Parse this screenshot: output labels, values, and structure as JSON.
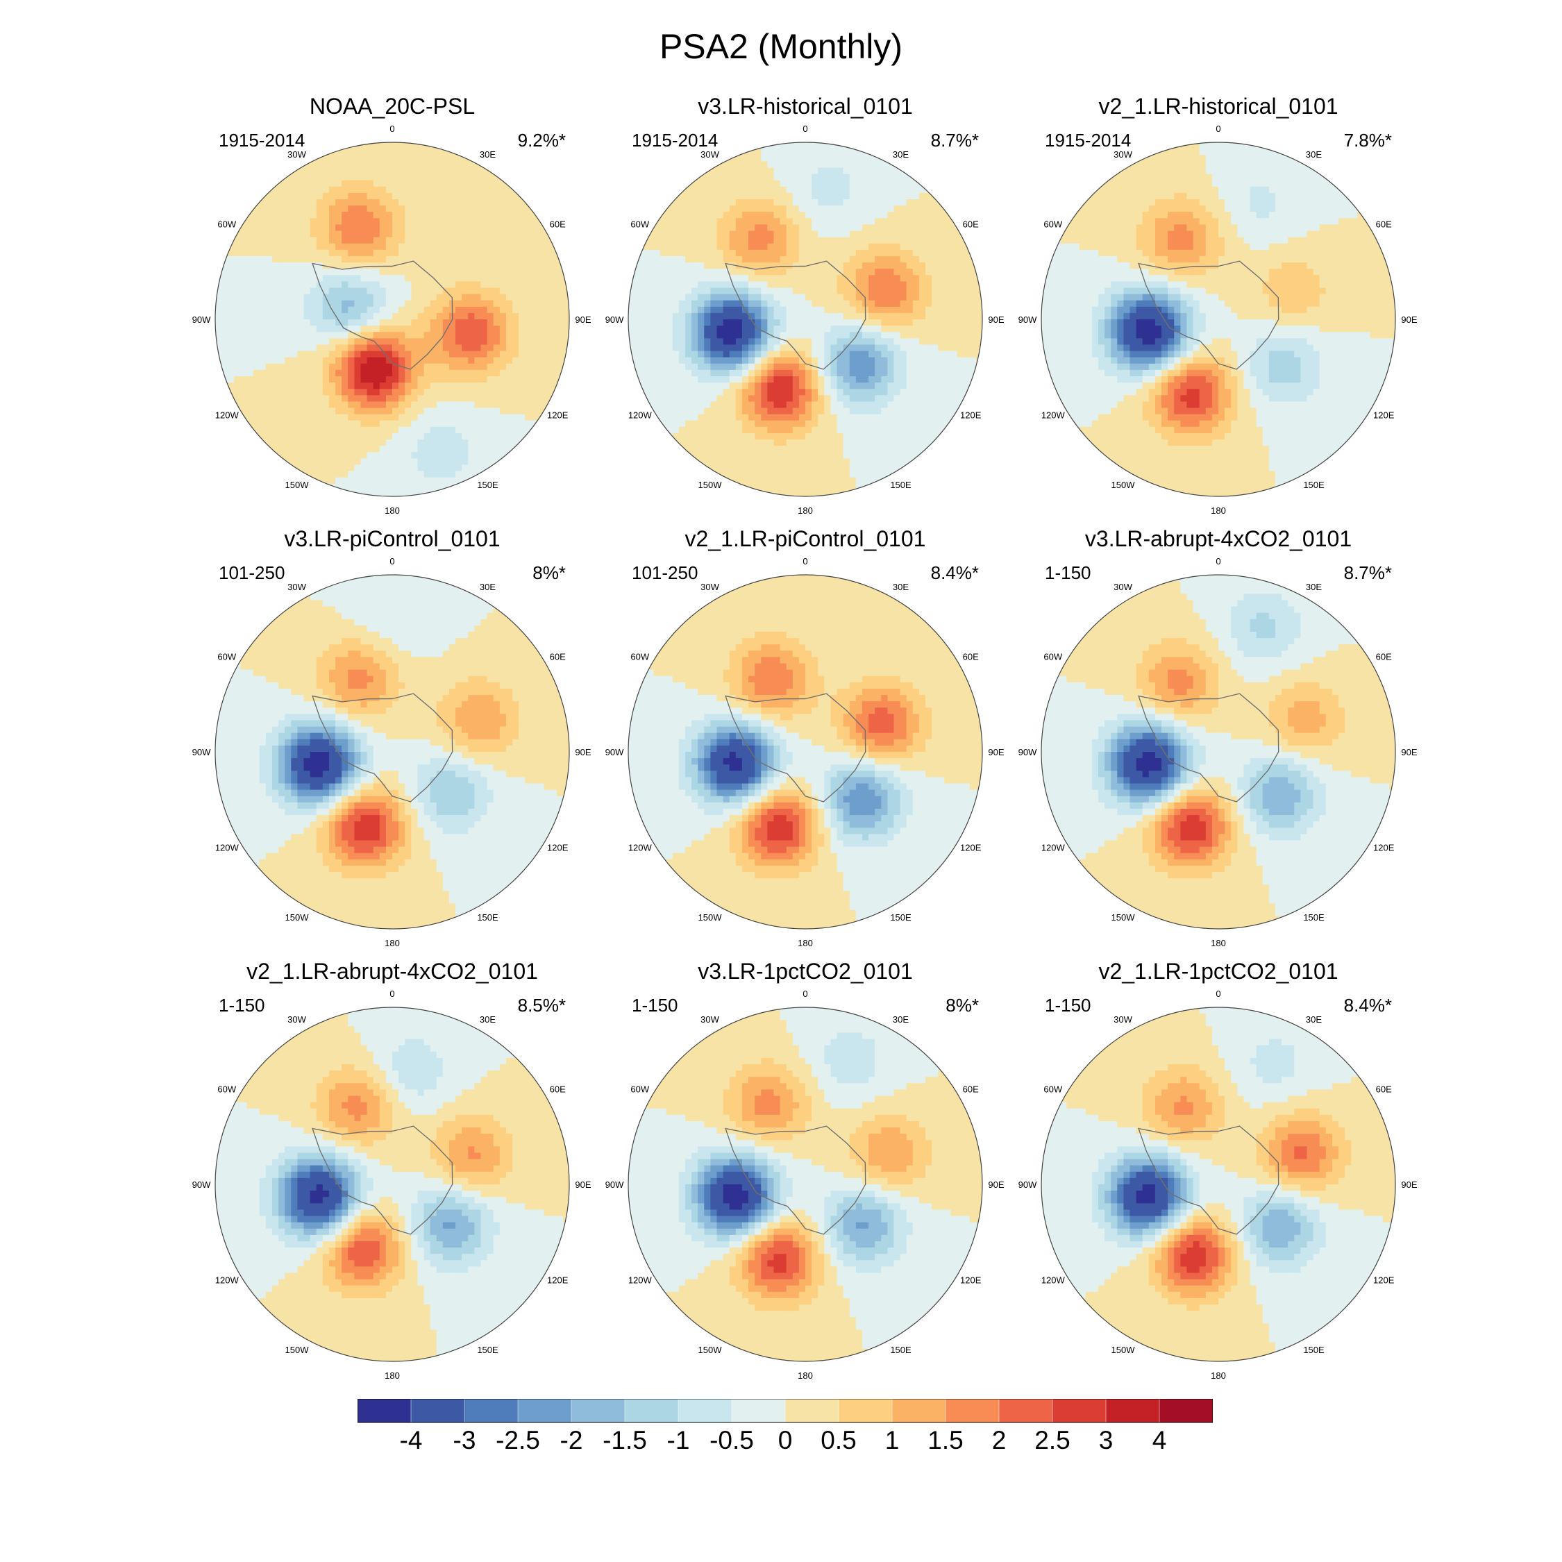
{
  "figure": {
    "title": "PSA2 (Monthly)"
  },
  "colors": {
    "palette": [
      "#2e3192",
      "#3d59a6",
      "#4f7cba",
      "#6d9ecc",
      "#8fbcda",
      "#add6e5",
      "#c9e6ef",
      "#e2f1f0",
      "#f7e3a6",
      "#fdd081",
      "#fcb264",
      "#f78d55",
      "#ed6446",
      "#dc3d33",
      "#c42127",
      "#a50f26"
    ],
    "coast": "#707070"
  },
  "chart_data": {
    "type": "polar contour map",
    "projection": "south polar stereographic",
    "longitude_labels": [
      "0",
      "30E",
      "60E",
      "90E",
      "120E",
      "150E",
      "180",
      "150W",
      "120W",
      "90W",
      "60W",
      "30W"
    ],
    "colorbar": {
      "labels": [
        "-4",
        "-3",
        "-2.5",
        "-2",
        "-1.5",
        "-1",
        "-0.5",
        "0",
        "0.5",
        "1",
        "1.5",
        "2",
        "2.5",
        "3",
        "4"
      ],
      "levels": [
        -4,
        -3,
        -2.5,
        -2,
        -1.5,
        -1,
        -0.5,
        0,
        0.5,
        1,
        1.5,
        2,
        2.5,
        3,
        4
      ]
    },
    "panels": [
      {
        "title": "NOAA_20C-PSL",
        "years": "1915-2014",
        "pct": "9.2%*",
        "centers": [
          {
            "lon": 100,
            "r": 0.45,
            "amp": 2.4
          },
          {
            "lon": -160,
            "r": 0.3,
            "amp": 3.6
          },
          {
            "lon": -20,
            "r": 0.55,
            "amp": 2.0
          },
          {
            "lon": -75,
            "r": 0.25,
            "amp": -1.8
          },
          {
            "lon": 160,
            "r": 0.8,
            "amp": -0.8
          }
        ]
      },
      {
        "title": "v3.LR-historical_0101",
        "years": "1915-2014",
        "pct": "8.7%*",
        "centers": [
          {
            "lon": -100,
            "r": 0.42,
            "amp": -4.5
          },
          {
            "lon": -160,
            "r": 0.42,
            "amp": 3.1
          },
          {
            "lon": 130,
            "r": 0.4,
            "amp": -2.4
          },
          {
            "lon": 70,
            "r": 0.48,
            "amp": 2.0
          },
          {
            "lon": -30,
            "r": 0.52,
            "amp": 1.7
          },
          {
            "lon": 10,
            "r": 0.75,
            "amp": -0.7
          }
        ]
      },
      {
        "title": "v2_1.LR-historical_0101",
        "years": "1915-2014",
        "pct": "7.8%*",
        "centers": [
          {
            "lon": -100,
            "r": 0.4,
            "amp": -4.5
          },
          {
            "lon": -160,
            "r": 0.45,
            "amp": 2.8
          },
          {
            "lon": 125,
            "r": 0.45,
            "amp": -1.3
          },
          {
            "lon": 70,
            "r": 0.45,
            "amp": 0.9
          },
          {
            "lon": -25,
            "r": 0.5,
            "amp": 1.7
          },
          {
            "lon": 20,
            "r": 0.7,
            "amp": -0.6
          }
        ]
      },
      {
        "title": "v3.LR-piControl_0101",
        "years": "101-250",
        "pct": "8%*",
        "centers": [
          {
            "lon": -100,
            "r": 0.42,
            "amp": -4.5
          },
          {
            "lon": -160,
            "r": 0.45,
            "amp": 3.0
          },
          {
            "lon": 125,
            "r": 0.4,
            "amp": -1.5
          },
          {
            "lon": 70,
            "r": 0.52,
            "amp": 1.5
          },
          {
            "lon": -25,
            "r": 0.45,
            "amp": 1.7
          },
          {
            "lon": 0,
            "r": 0.75,
            "amp": -0.5
          }
        ]
      },
      {
        "title": "v2_1.LR-piControl_0101",
        "years": "101-250",
        "pct": "8.4%*",
        "centers": [
          {
            "lon": -100,
            "r": 0.4,
            "amp": -4.3
          },
          {
            "lon": -160,
            "r": 0.45,
            "amp": 3.0
          },
          {
            "lon": 130,
            "r": 0.42,
            "amp": -2.5
          },
          {
            "lon": 70,
            "r": 0.46,
            "amp": 2.3
          },
          {
            "lon": -25,
            "r": 0.45,
            "amp": 2.0
          }
        ]
      },
      {
        "title": "v3.LR-abrupt-4xCO2_0101",
        "years": "1-150",
        "pct": "8.7%*",
        "centers": [
          {
            "lon": -100,
            "r": 0.4,
            "amp": -4.5
          },
          {
            "lon": -160,
            "r": 0.45,
            "amp": 3.0
          },
          {
            "lon": 125,
            "r": 0.42,
            "amp": -2.0
          },
          {
            "lon": 70,
            "r": 0.52,
            "amp": 1.3
          },
          {
            "lon": -30,
            "r": 0.45,
            "amp": 1.7
          },
          {
            "lon": 20,
            "r": 0.75,
            "amp": -1.1
          }
        ]
      },
      {
        "title": "v2_1.LR-abrupt-4xCO2_0101",
        "years": "1-150",
        "pct": "8.5%*",
        "centers": [
          {
            "lon": -100,
            "r": 0.42,
            "amp": -4.4
          },
          {
            "lon": -155,
            "r": 0.4,
            "amp": 2.6
          },
          {
            "lon": 125,
            "r": 0.4,
            "amp": -2.1
          },
          {
            "lon": 70,
            "r": 0.48,
            "amp": 1.6
          },
          {
            "lon": -25,
            "r": 0.48,
            "amp": 1.7
          },
          {
            "lon": 10,
            "r": 0.65,
            "amp": -0.9
          }
        ]
      },
      {
        "title": "v3.LR-1pctCO2_0101",
        "years": "1-150",
        "pct": "8%*",
        "centers": [
          {
            "lon": -100,
            "r": 0.4,
            "amp": -4.5
          },
          {
            "lon": -160,
            "r": 0.45,
            "amp": 2.8
          },
          {
            "lon": 125,
            "r": 0.4,
            "amp": -2.1
          },
          {
            "lon": 70,
            "r": 0.5,
            "amp": 1.5
          },
          {
            "lon": -25,
            "r": 0.5,
            "amp": 1.7
          },
          {
            "lon": 20,
            "r": 0.75,
            "amp": -0.8
          }
        ]
      },
      {
        "title": "v2_1.LR-1pctCO2_0101",
        "years": "1-150",
        "pct": "8.4%*",
        "centers": [
          {
            "lon": -100,
            "r": 0.4,
            "amp": -4.4
          },
          {
            "lon": -160,
            "r": 0.42,
            "amp": 3.0
          },
          {
            "lon": 125,
            "r": 0.42,
            "amp": -2.0
          },
          {
            "lon": 70,
            "r": 0.5,
            "amp": 2.1
          },
          {
            "lon": -25,
            "r": 0.48,
            "amp": 1.6
          },
          {
            "lon": 25,
            "r": 0.75,
            "amp": -0.7
          }
        ]
      }
    ]
  }
}
